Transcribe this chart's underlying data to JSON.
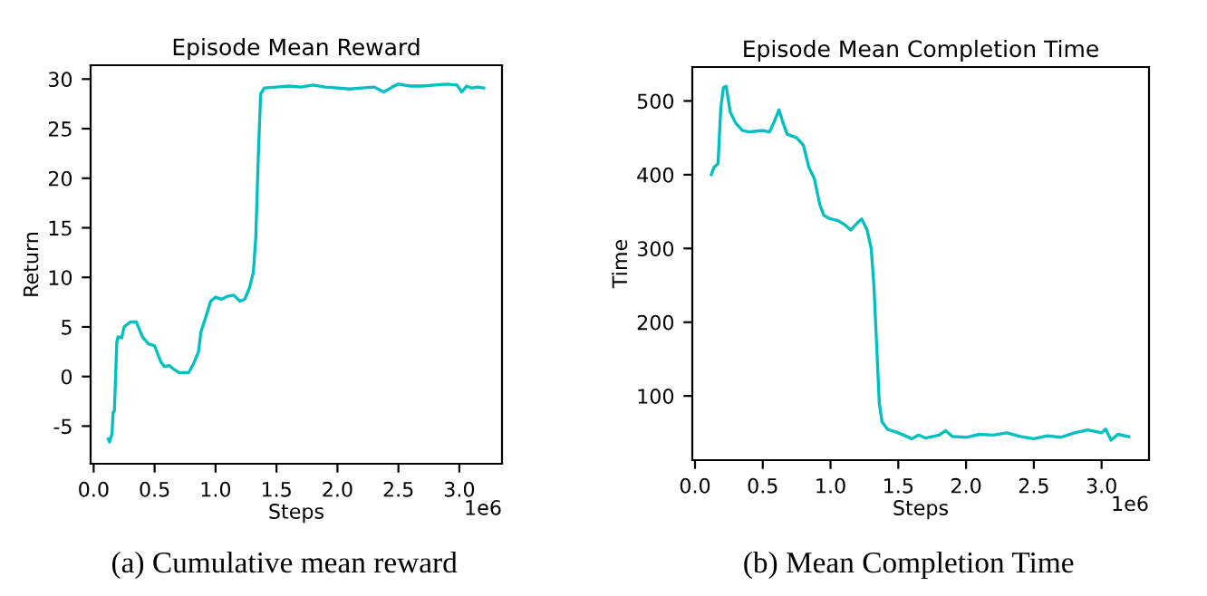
{
  "chart_data": [
    {
      "type": "line",
      "title": "Episode Mean Reward",
      "xlabel": "Steps",
      "ylabel": "Return",
      "annotations": [
        "1e6",
        "(a) Cumulative mean reward"
      ],
      "x": [
        0.12,
        0.13,
        0.15,
        0.16,
        0.17,
        0.19,
        0.2,
        0.23,
        0.25,
        0.3,
        0.35,
        0.4,
        0.45,
        0.5,
        0.55,
        0.58,
        0.62,
        0.65,
        0.7,
        0.78,
        0.82,
        0.86,
        0.88,
        0.92,
        0.96,
        1.0,
        1.05,
        1.1,
        1.15,
        1.2,
        1.24,
        1.28,
        1.31,
        1.33,
        1.35,
        1.37,
        1.4,
        1.5,
        1.6,
        1.7,
        1.8,
        1.9,
        2.0,
        2.1,
        2.2,
        2.3,
        2.38,
        2.45,
        2.5,
        2.6,
        2.7,
        2.8,
        2.9,
        2.98,
        3.02,
        3.06,
        3.1,
        3.15,
        3.2
      ],
      "series": [
        {
          "color": "#00bfbf",
          "values": [
            -6.3,
            -6.6,
            -5.8,
            -3.6,
            -3.5,
            3.5,
            4.0,
            3.9,
            5.0,
            5.5,
            5.5,
            4.0,
            3.3,
            3.1,
            1.5,
            1.0,
            1.1,
            0.8,
            0.4,
            0.4,
            1.3,
            2.5,
            4.5,
            6.0,
            7.6,
            8.0,
            7.8,
            8.1,
            8.2,
            7.6,
            7.8,
            9.0,
            10.5,
            14,
            22,
            28.5,
            29.1,
            29.2,
            29.3,
            29.2,
            29.4,
            29.2,
            29.1,
            29.0,
            29.1,
            29.2,
            28.7,
            29.2,
            29.5,
            29.3,
            29.3,
            29.4,
            29.5,
            29.4,
            28.7,
            29.3,
            29.1,
            29.2,
            29.1
          ]
        }
      ],
      "xlim": [
        -0.025,
        3.35
      ],
      "ylim": [
        -8.8,
        31.4
      ],
      "xticks": [
        {
          "value": 0,
          "label": "0.0"
        },
        0.5,
        {
          "value": 1,
          "label": "1.0"
        },
        1.5,
        {
          "value": 2,
          "label": "2.0"
        },
        2.5,
        {
          "value": 3,
          "label": "3.0"
        }
      ],
      "yticks": [
        -5,
        0,
        5,
        10,
        15,
        20,
        25,
        30
      ],
      "grid": false,
      "legend": false
    },
    {
      "type": "line",
      "title": "Episode Mean Completion Time",
      "xlabel": "Steps",
      "ylabel": "Time",
      "annotations": [
        "1e6",
        "(b) Mean Completion Time"
      ],
      "x": [
        0.12,
        0.14,
        0.17,
        0.19,
        0.21,
        0.23,
        0.26,
        0.3,
        0.35,
        0.4,
        0.5,
        0.55,
        0.58,
        0.62,
        0.65,
        0.68,
        0.75,
        0.8,
        0.84,
        0.88,
        0.92,
        0.95,
        1.0,
        1.05,
        1.1,
        1.15,
        1.2,
        1.23,
        1.27,
        1.3,
        1.32,
        1.34,
        1.36,
        1.38,
        1.42,
        1.5,
        1.6,
        1.65,
        1.7,
        1.8,
        1.85,
        1.9,
        2.0,
        2.1,
        2.2,
        2.3,
        2.4,
        2.5,
        2.6,
        2.7,
        2.8,
        2.9,
        3.0,
        3.03,
        3.07,
        3.12,
        3.2
      ],
      "series": [
        {
          "color": "#00bfbf",
          "values": [
            400,
            410,
            415,
            490,
            518,
            520,
            485,
            470,
            460,
            458,
            460,
            458,
            470,
            488,
            470,
            455,
            450,
            440,
            410,
            395,
            360,
            345,
            340,
            338,
            333,
            325,
            335,
            340,
            325,
            300,
            250,
            170,
            90,
            65,
            55,
            50,
            42,
            47,
            43,
            47,
            53,
            45,
            44,
            48,
            47,
            50,
            45,
            42,
            46,
            44,
            50,
            54,
            50,
            55,
            40,
            48,
            45
          ]
        }
      ],
      "xlim": [
        -0.02,
        3.35
      ],
      "ylim": [
        13,
        546
      ],
      "xticks": [
        {
          "value": 0,
          "label": "0.0"
        },
        0.5,
        {
          "value": 1,
          "label": "1.0"
        },
        1.5,
        {
          "value": 2,
          "label": "2.0"
        },
        2.5,
        {
          "value": 3,
          "label": "3.0"
        }
      ],
      "yticks": [
        100,
        200,
        300,
        400,
        500
      ],
      "grid": false,
      "legend": false
    }
  ]
}
